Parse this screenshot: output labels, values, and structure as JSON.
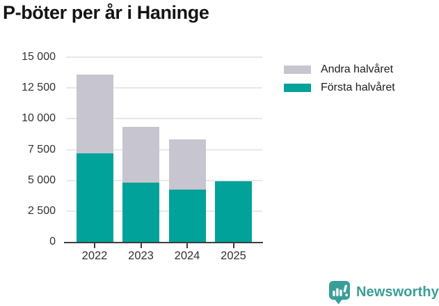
{
  "title": "P-böter per år i Haninge",
  "colors": {
    "first_half": "#00a29a",
    "second_half": "#c7c5cf",
    "grid": "#e8e7eb",
    "axis": "#3d3d3d",
    "logo_teal": "#399e98"
  },
  "chart_data": {
    "type": "bar",
    "stacked": true,
    "title": "P-böter per år i Haninge",
    "categories": [
      "2022",
      "2023",
      "2024",
      "2025"
    ],
    "series": [
      {
        "name": "Första halvåret",
        "color_key": "first_half",
        "values": [
          7200,
          4800,
          4250,
          4950
        ]
      },
      {
        "name": "Andra halvåret",
        "color_key": "second_half",
        "values": [
          6400,
          4550,
          4050,
          0
        ]
      }
    ],
    "xlabel": "",
    "ylabel": "",
    "ylim": [
      0,
      15000
    ],
    "ytick_step": 2500,
    "ytick_labels": [
      "0",
      "2 500",
      "5 000",
      "7 500",
      "10 000",
      "12 500",
      "15 000"
    ],
    "grid": true,
    "legend_position": "right"
  },
  "legend": {
    "items": [
      {
        "label": "Andra halvåret",
        "color_key": "second_half"
      },
      {
        "label": "Första halvåret",
        "color_key": "first_half"
      }
    ]
  },
  "branding": {
    "name": "Newsworthy",
    "logo_icon": "bar-chart-speech-bubble-icon"
  }
}
